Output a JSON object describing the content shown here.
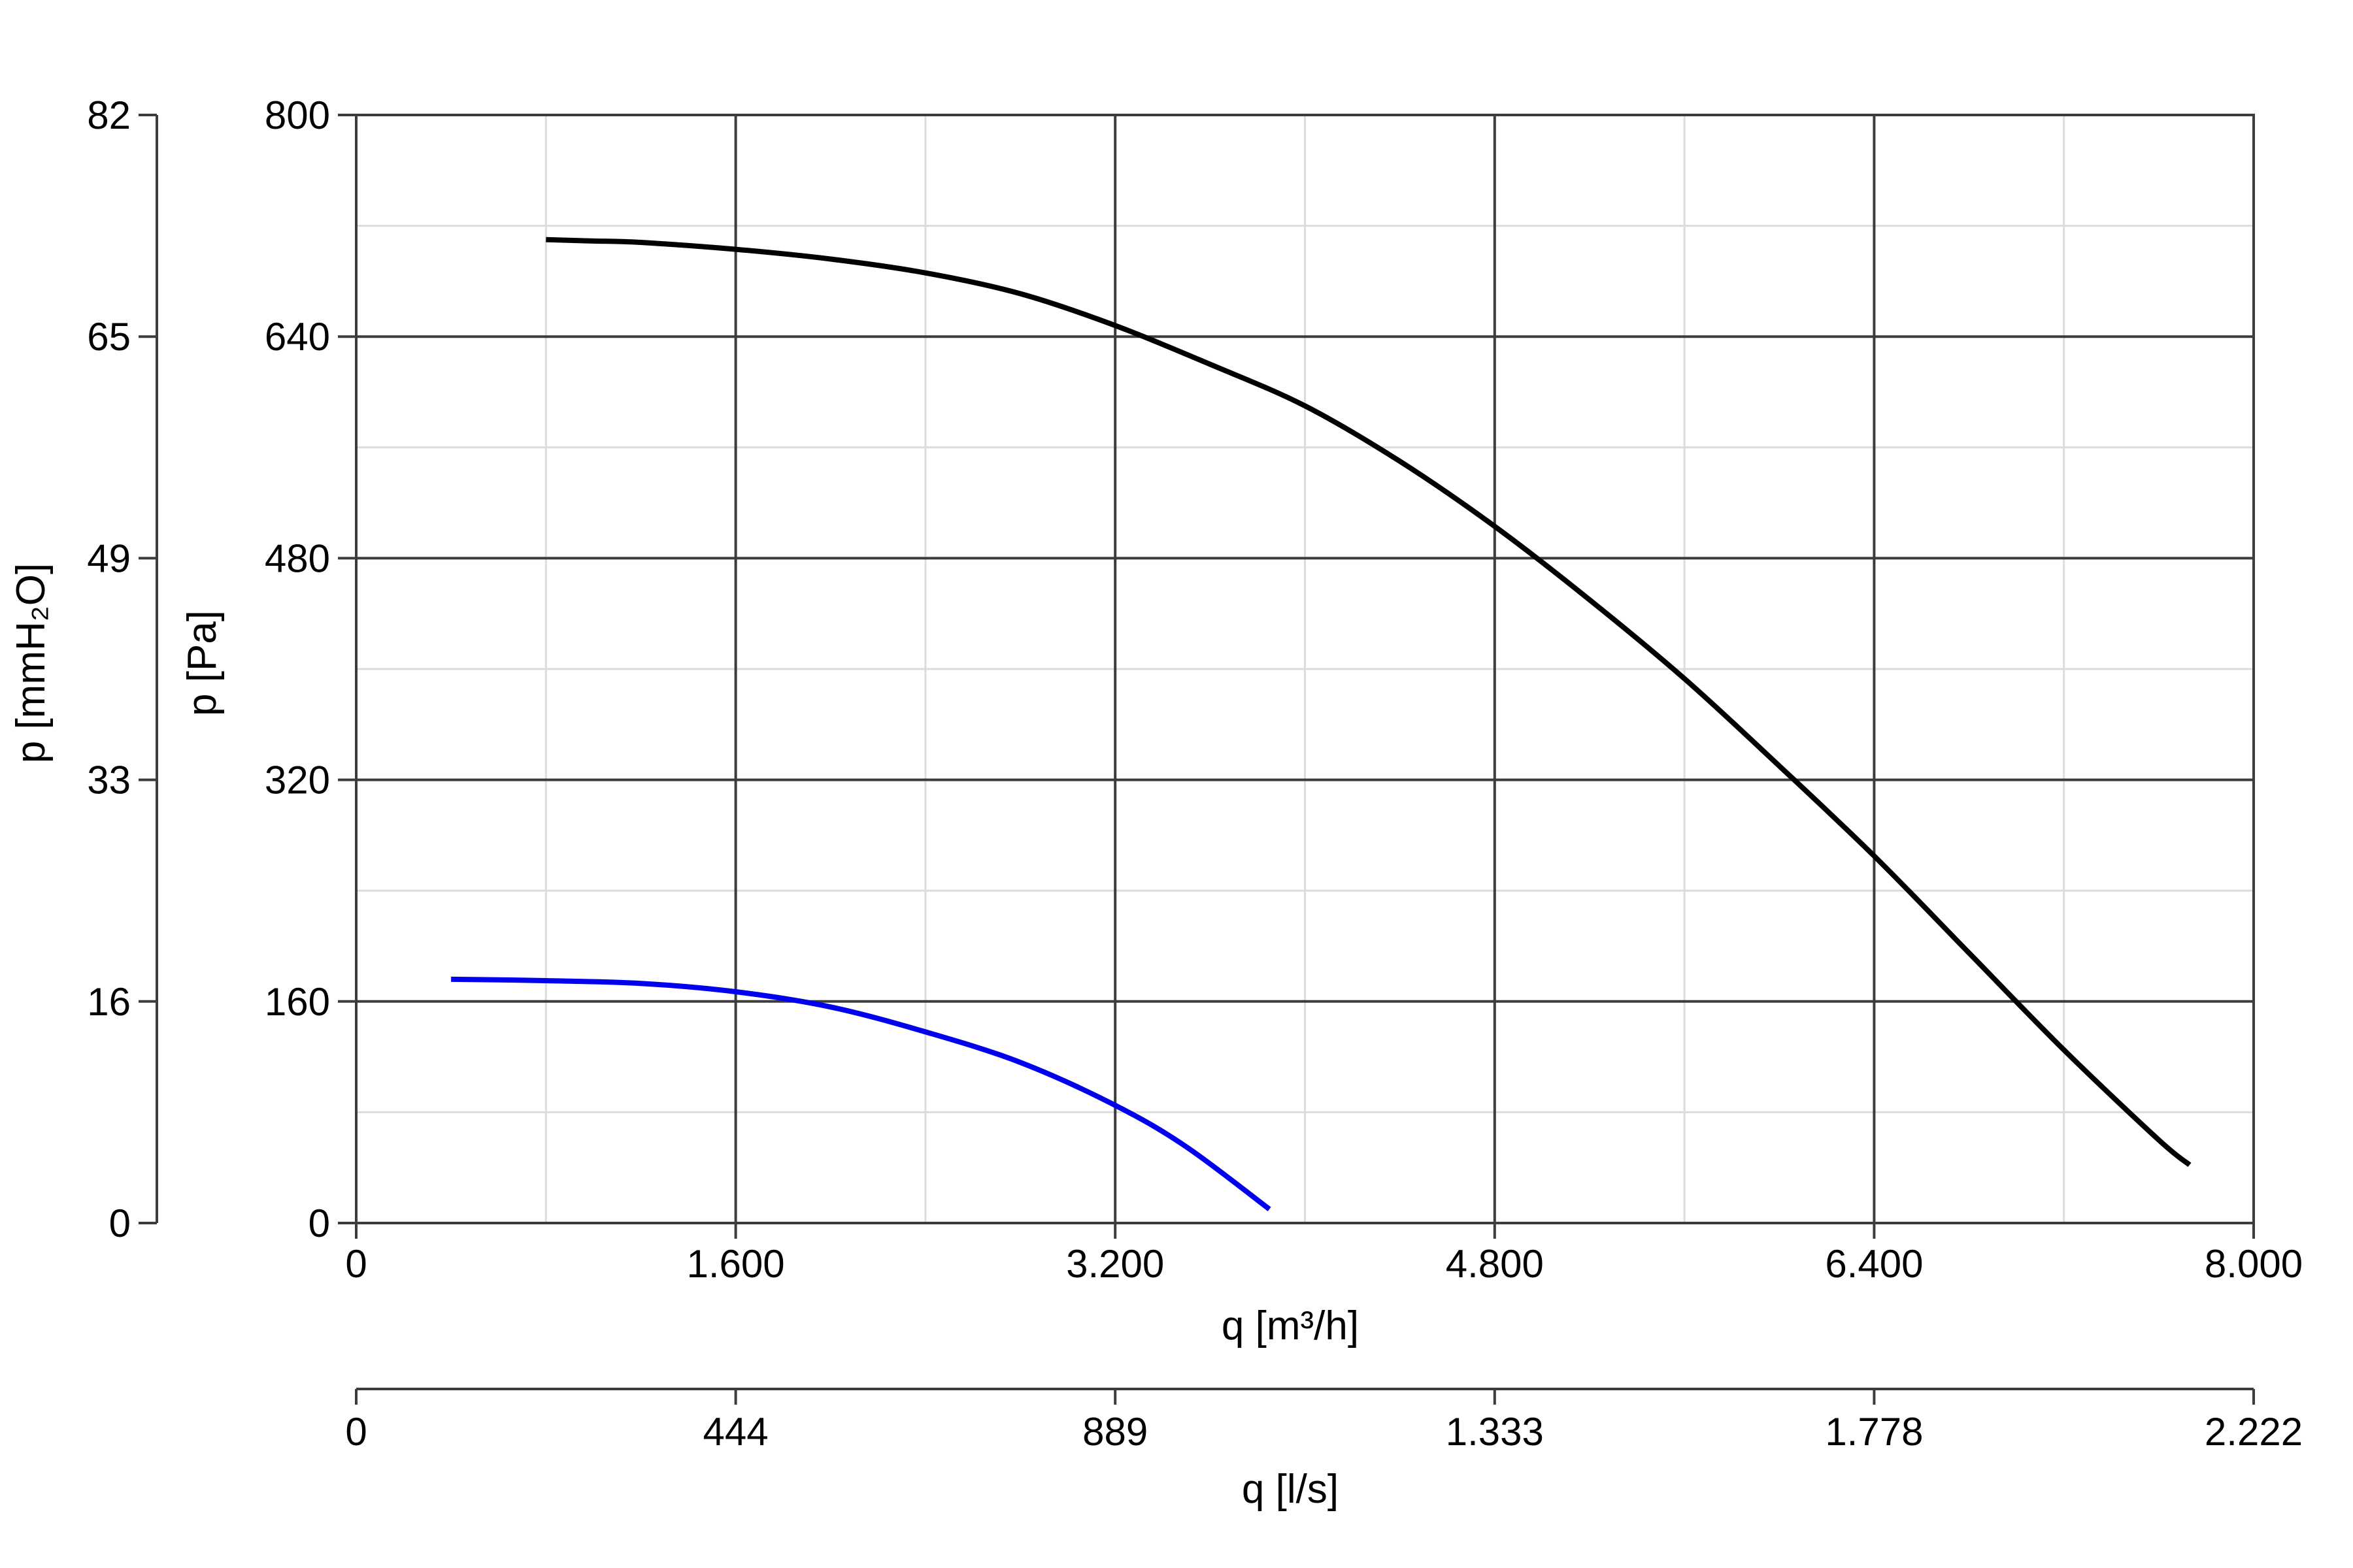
{
  "chart_data": {
    "type": "line",
    "x_axis": {
      "label": "q [m³/h]",
      "range": [
        0,
        8000
      ],
      "ticks": [
        0,
        1600,
        3200,
        4800,
        6400,
        8000
      ],
      "tick_labels": [
        "0",
        "1.600",
        "3.200",
        "4.800",
        "6.400",
        "8.000"
      ]
    },
    "x_axis_secondary": {
      "label": "q [l/s]",
      "tick_labels": [
        "0",
        "444",
        "889",
        "1.333",
        "1.778",
        "2.222"
      ]
    },
    "y_axis": {
      "label": "p [Pa]",
      "range": [
        0,
        800
      ],
      "ticks": [
        0,
        160,
        320,
        480,
        640,
        800
      ],
      "tick_labels": [
        "0",
        "160",
        "320",
        "480",
        "640",
        "800"
      ]
    },
    "y_axis_secondary": {
      "label": "p [mmH₂O]",
      "tick_labels": [
        "0",
        "16",
        "33",
        "49",
        "65",
        "82"
      ]
    },
    "grid": true,
    "series": [
      {
        "color": "#000000",
        "x": [
          800,
          1000,
          1200,
          1600,
          2000,
          2400,
          2800,
          3200,
          3600,
          4000,
          4400,
          4800,
          5200,
          5600,
          6000,
          6400,
          6800,
          7200,
          7600,
          7730
        ],
        "y": [
          710,
          709,
          708,
          703,
          696,
          686,
          671,
          648,
          620,
          590,
          550,
          503,
          450,
          393,
          330,
          265,
          195,
          125,
          60,
          42
        ]
      },
      {
        "color": "#0000ee",
        "x": [
          400,
          800,
          1200,
          1600,
          2000,
          2400,
          2800,
          3200,
          3500,
          3850
        ],
        "y": [
          176,
          175,
          173,
          167,
          156,
          138,
          116,
          85,
          55,
          10
        ]
      }
    ]
  }
}
